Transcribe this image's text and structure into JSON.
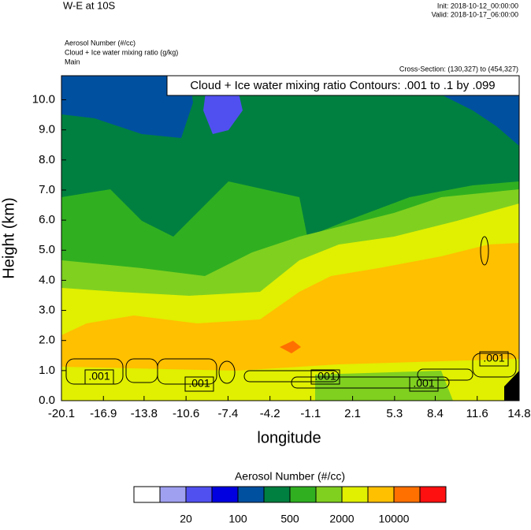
{
  "chart_data": {
    "type": "contour",
    "title": "W-E at 10S",
    "init": "Init: 2018-10-12_00:00:00",
    "valid": "Valid: 2018-10-17_06:00:00",
    "field_label": "Aerosol Number   (#/cc)",
    "contour_label": "Cloud + Ice water mixing ratio   (g/kg)",
    "domain": "Main",
    "cross_section": "Cross-Section: (130,327) to (454,327)",
    "contour_info": "Cloud + Ice water mixing ratio Contours: .001 to .1 by .099",
    "xlabel": "longitude",
    "ylabel": "Height (km)",
    "xlim": [
      -20.1,
      14.8
    ],
    "xticks": [
      -20.1,
      -16.9,
      -13.8,
      -10.6,
      -7.4,
      -4.2,
      -1.1,
      2.1,
      5.3,
      8.4,
      11.6,
      14.8
    ],
    "ylim": [
      0,
      10.8
    ],
    "yticks": [
      {
        "value": 0,
        "label": "0.0"
      },
      {
        "value": 1,
        "label": "1.0"
      },
      {
        "value": 2,
        "label": "2.0"
      },
      {
        "value": 3,
        "label": "3.0"
      },
      {
        "value": 4,
        "label": "4.0"
      },
      {
        "value": 5,
        "label": "5.0"
      },
      {
        "value": 6,
        "label": "6.0"
      },
      {
        "value": 7,
        "label": "7.0"
      },
      {
        "value": 8,
        "label": "8.0"
      },
      {
        "value": 9,
        "label": "9.0"
      },
      {
        "value": 10,
        "label": "10.0"
      }
    ],
    "contour_labels": [
      ".001",
      ".001",
      ".001",
      ".001",
      ".001"
    ],
    "colorbar": {
      "title": "Aerosol Number  (#/cc)",
      "colors": [
        "#ffffff",
        "#a0a0f0",
        "#5050f0",
        "#0000e0",
        "#0050a0",
        "#008040",
        "#30b020",
        "#80d020",
        "#e0f000",
        "#ffc000",
        "#ff7000",
        "#ff1010"
      ],
      "labels": [
        20,
        100,
        500,
        2000,
        10000
      ]
    }
  }
}
